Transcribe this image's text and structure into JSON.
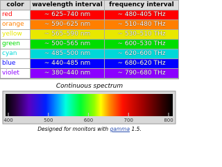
{
  "table": {
    "header": [
      "color",
      "wavelength interval",
      "frequency interval"
    ],
    "rows": [
      {
        "color": "#ff0000",
        "name": "red",
        "wavelength": "~ 625–740 nm",
        "frequency": "~ 480–405 THz"
      },
      {
        "color": "#ff7f00",
        "name": "orange",
        "wavelength": "~ 590–625 nm",
        "frequency": "~ 510–480 THz"
      },
      {
        "color": "#e8e800",
        "name": "yellow",
        "wavelength": "~ 565–590 nm",
        "frequency": "~ 530–510 THz"
      },
      {
        "color": "#00dd00",
        "name": "green",
        "wavelength": "~ 500–565 nm",
        "frequency": "~ 600–530 THz"
      },
      {
        "color": "#00d8d8",
        "name": "cyan",
        "wavelength": "~ 485–500 nm",
        "frequency": "~ 620–600 THz"
      },
      {
        "color": "#0000ff",
        "name": "blue",
        "wavelength": "~ 440–485 nm",
        "frequency": "~ 680–620 THz"
      },
      {
        "color": "#8b00ff",
        "name": "violet",
        "wavelength": "~ 380–440 nm",
        "frequency": "~ 790–680 THz"
      }
    ]
  },
  "spectrum": {
    "title": "Continuous spectrum",
    "ticks": [
      400,
      500,
      600,
      700,
      800
    ]
  },
  "caption": {
    "before": "Designed for monitors with",
    "link": "gamma",
    "after": "1.5."
  }
}
